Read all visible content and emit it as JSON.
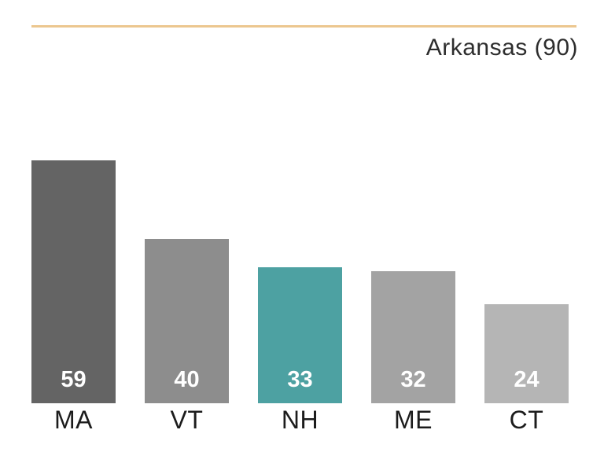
{
  "header": {
    "title": "Arkansas (90)"
  },
  "colors": {
    "rule": "#ecc78f",
    "title_text": "#2d2d2d",
    "category_label": "#1c1c1c",
    "value_label": "#ffffff",
    "highlight": "#4da1a2"
  },
  "chart_data": {
    "type": "bar",
    "title": "Arkansas (90)",
    "categories": [
      "MA",
      "VT",
      "NH",
      "ME",
      "CT"
    ],
    "values": [
      59,
      40,
      33,
      32,
      24
    ],
    "bars": [
      {
        "label": "MA",
        "value": 59,
        "color": "#646464",
        "highlighted": false
      },
      {
        "label": "VT",
        "value": 40,
        "color": "#8d8d8d",
        "highlighted": false
      },
      {
        "label": "NH",
        "value": 33,
        "color": "#4da1a2",
        "highlighted": true
      },
      {
        "label": "ME",
        "value": 32,
        "color": "#a3a3a3",
        "highlighted": false
      },
      {
        "label": "CT",
        "value": 24,
        "color": "#b5b5b5",
        "highlighted": false
      }
    ],
    "xlabel": "",
    "ylabel": "",
    "ylim": [
      0,
      59
    ],
    "grid": false,
    "legend": "none",
    "axes_visible": false,
    "value_label_position": "inside-bottom"
  }
}
